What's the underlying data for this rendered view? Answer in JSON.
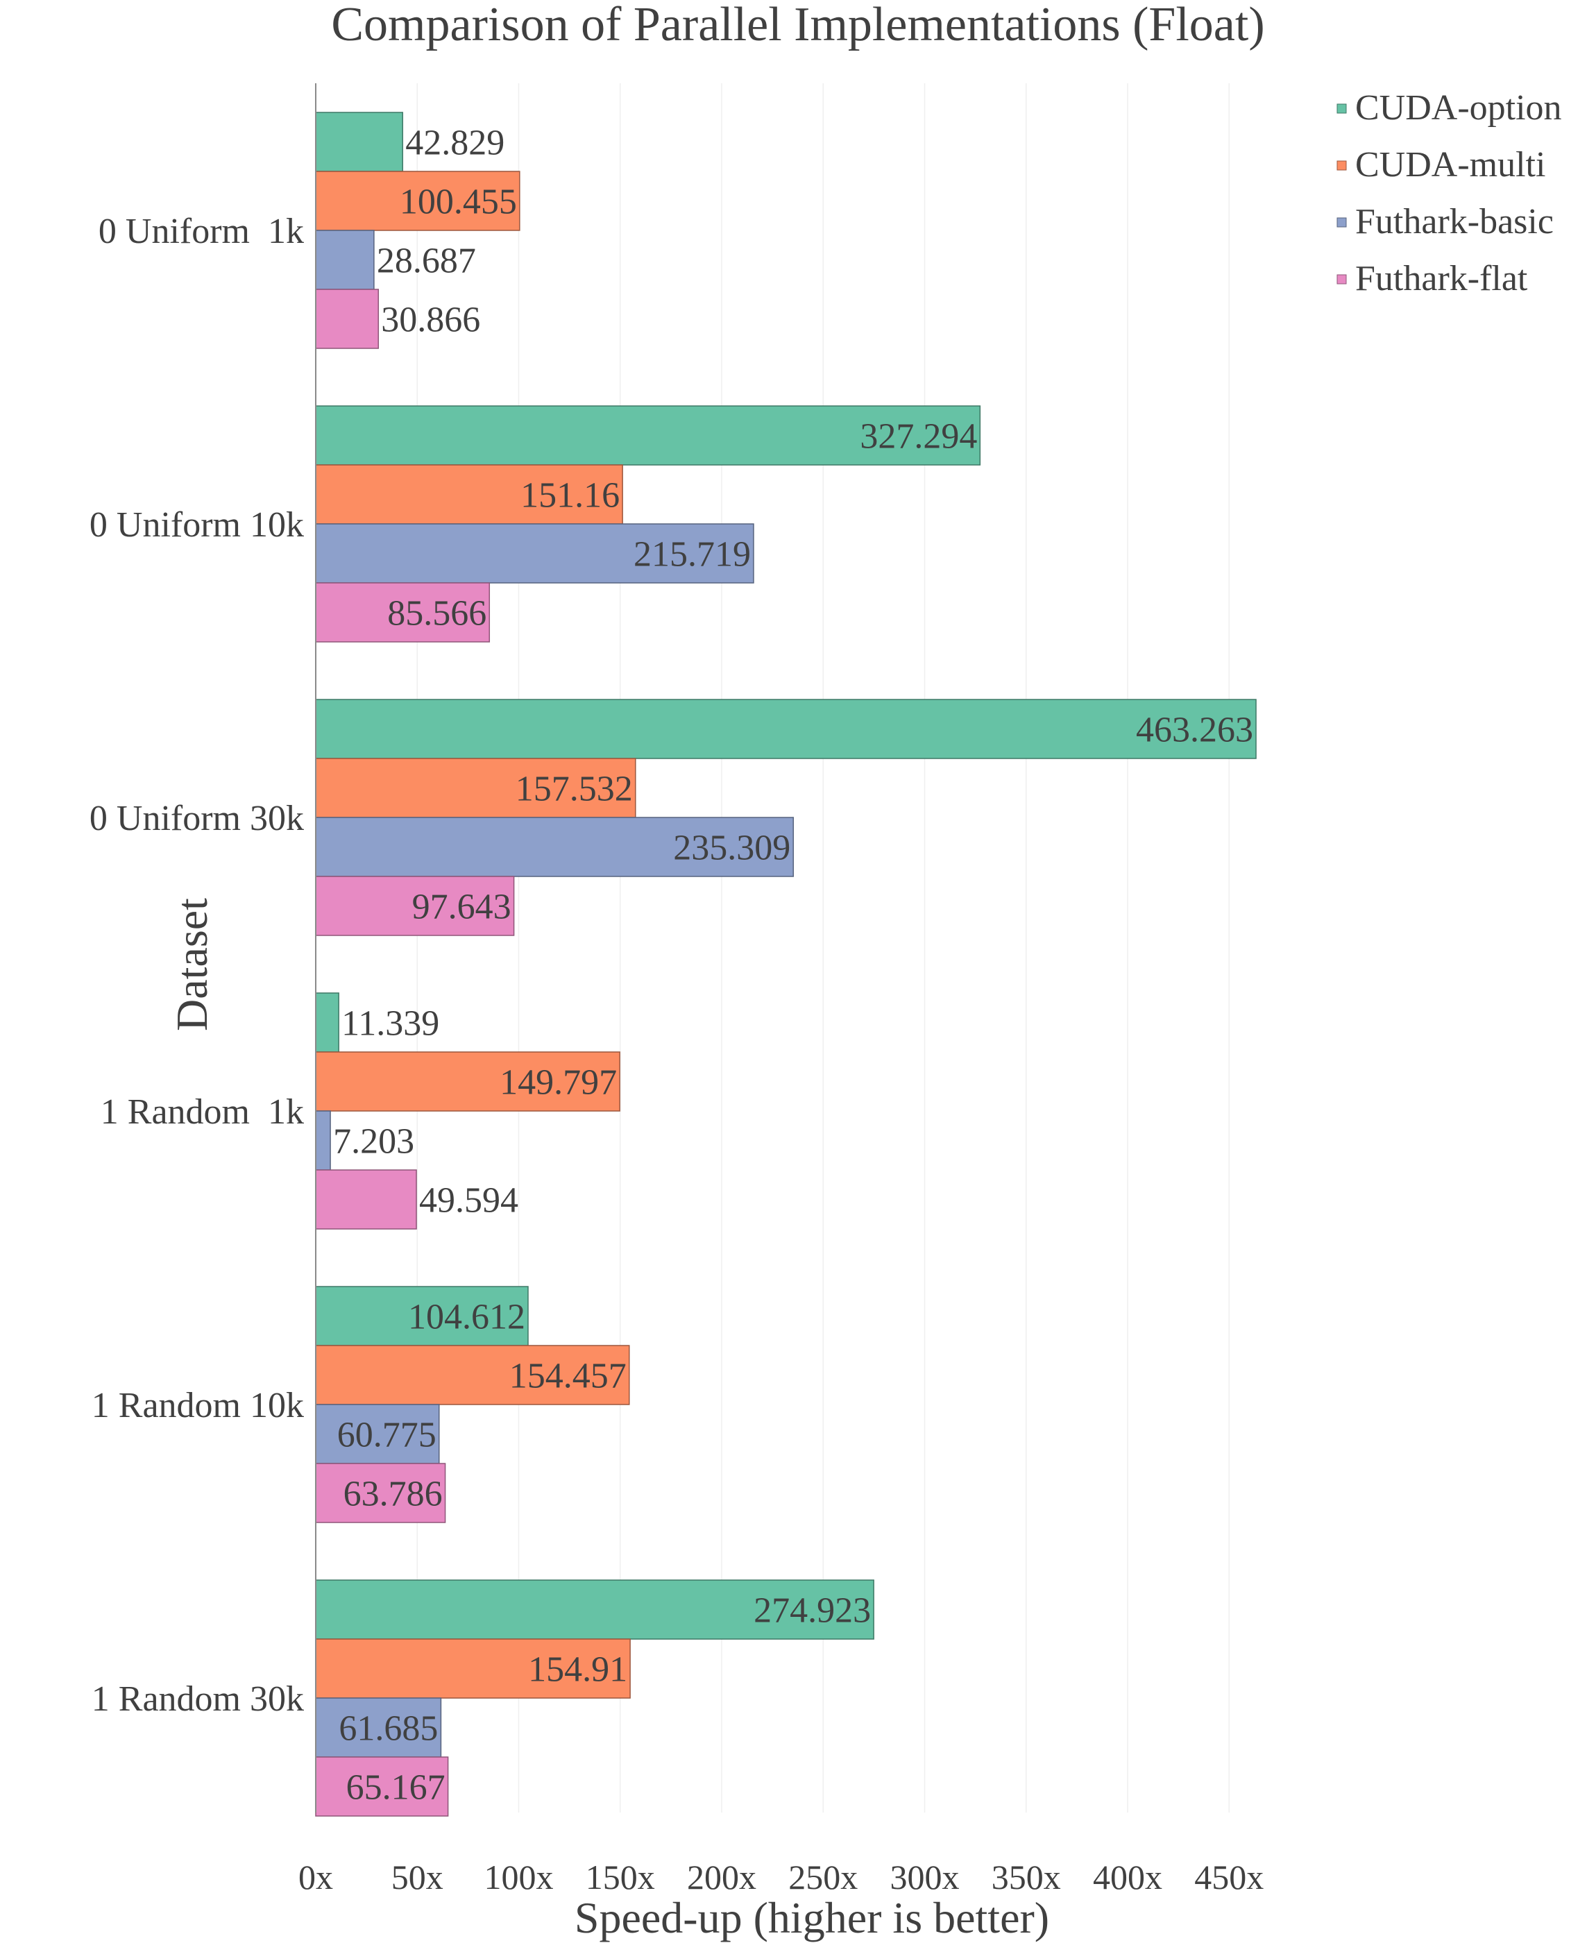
{
  "chart_data": {
    "type": "bar",
    "orientation": "horizontal",
    "title": "Comparison of Parallel Implementations (Float)",
    "xlabel": "Speed-up (higher is better)",
    "ylabel": "Dataset",
    "xlim": [
      0,
      475
    ],
    "xticks": [
      0,
      50,
      100,
      150,
      200,
      250,
      300,
      350,
      400,
      450
    ],
    "xtick_labels": [
      "0x",
      "50x",
      "100x",
      "150x",
      "200x",
      "250x",
      "300x",
      "350x",
      "400x",
      "450x"
    ],
    "grid": true,
    "legend_position": "top-right",
    "categories": [
      "0 Uniform  1k",
      "0 Uniform 10k",
      "0 Uniform 30k",
      "1 Random  1k",
      "1 Random 10k",
      "1 Random 30k"
    ],
    "series": [
      {
        "name": "CUDA-option",
        "color": "#66c2a5",
        "values": [
          42.829,
          327.294,
          463.263,
          11.339,
          104.612,
          274.923
        ],
        "labels": [
          "42.829",
          "327.294",
          "463.263",
          "11.339",
          "104.612",
          "274.923"
        ]
      },
      {
        "name": "CUDA-multi",
        "color": "#fc8d62",
        "values": [
          100.455,
          151.16,
          157.532,
          149.797,
          154.457,
          154.91
        ],
        "labels": [
          "100.455",
          "151.16",
          "157.532",
          "149.797",
          "154.457",
          "154.91"
        ]
      },
      {
        "name": "Futhark-basic",
        "color": "#8da0cb",
        "values": [
          28.687,
          215.719,
          235.309,
          7.203,
          60.775,
          61.685
        ],
        "labels": [
          "28.687",
          "215.719",
          "235.309",
          "7.203",
          "60.775",
          "61.685"
        ]
      },
      {
        "name": "Futhark-flat",
        "color": "#e78ac3",
        "values": [
          30.866,
          85.566,
          97.643,
          49.594,
          63.786,
          65.167
        ],
        "labels": [
          "30.866",
          "85.566",
          "97.643",
          "49.594",
          "63.786",
          "65.167"
        ]
      }
    ]
  }
}
